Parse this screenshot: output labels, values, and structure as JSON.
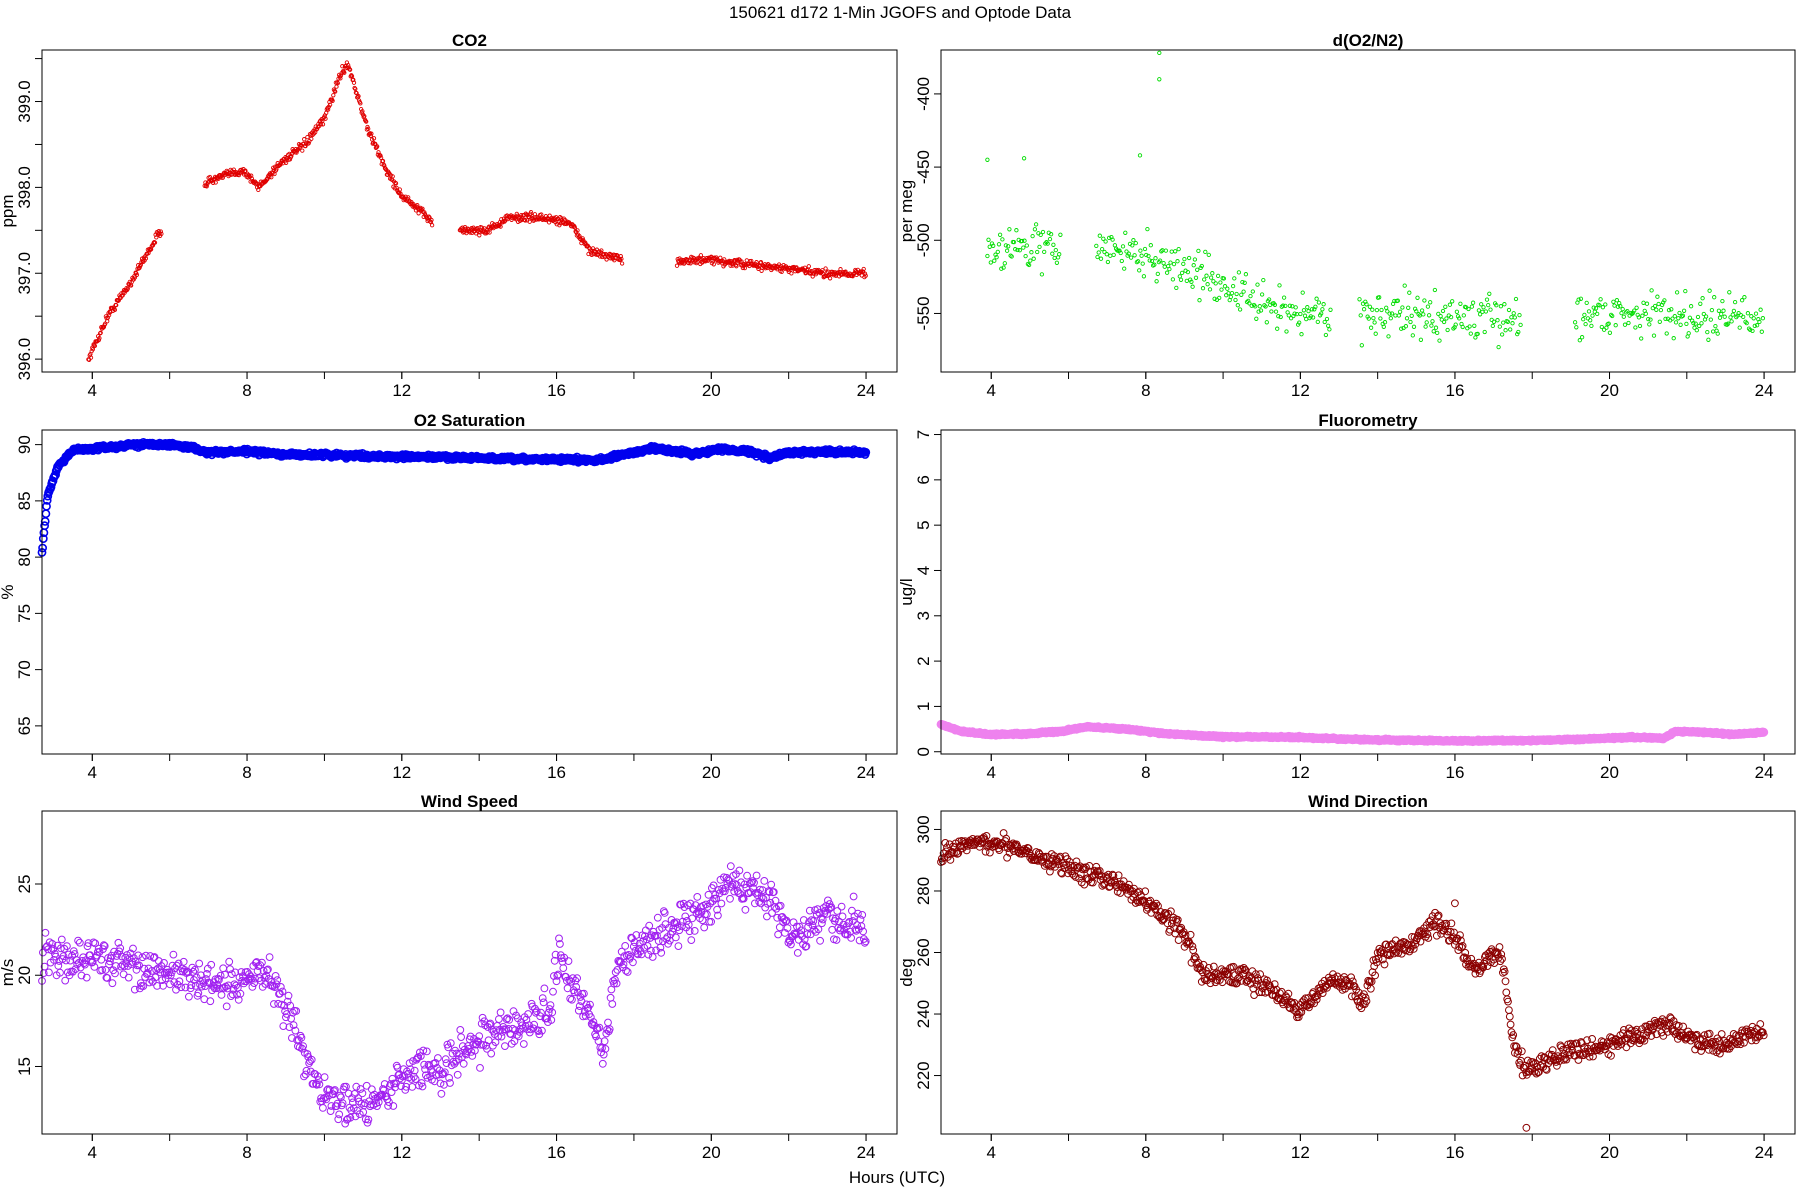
{
  "figure": {
    "title": "150621   d172   1-Min  JGOFS and Optode Data",
    "xlabel": "Hours (UTC)"
  },
  "chart_data": [
    {
      "type": "scatter",
      "id": "co2",
      "title": "CO2",
      "xlabel": "",
      "ylabel": "ppm",
      "xlim": [
        2.7,
        24.8
      ],
      "ylim": [
        395.85,
        399.6
      ],
      "xticks": [
        "4",
        "8",
        "12",
        "16",
        "20",
        "24"
      ],
      "yticks": [
        "396.0",
        "397.0",
        "398.0",
        "399.0"
      ],
      "color": "#e00000",
      "marker_size": "small",
      "gaps": [
        [
          5.8,
          6.9
        ],
        [
          12.8,
          13.5
        ],
        [
          17.7,
          19.1
        ]
      ],
      "anchors": [
        [
          3.9,
          396.0
        ],
        [
          4.4,
          396.5
        ],
        [
          5.0,
          396.9
        ],
        [
          5.7,
          397.45
        ],
        [
          6.9,
          398.05
        ],
        [
          7.5,
          398.15
        ],
        [
          7.9,
          398.2
        ],
        [
          8.3,
          398.0
        ],
        [
          8.9,
          398.3
        ],
        [
          9.5,
          398.5
        ],
        [
          10.0,
          398.8
        ],
        [
          10.4,
          399.3
        ],
        [
          10.6,
          399.45
        ],
        [
          11.1,
          398.7
        ],
        [
          11.6,
          398.2
        ],
        [
          12.0,
          397.9
        ],
        [
          12.8,
          397.6
        ],
        [
          13.5,
          397.5
        ],
        [
          14.2,
          397.5
        ],
        [
          14.8,
          397.65
        ],
        [
          15.5,
          397.65
        ],
        [
          16.3,
          397.6
        ],
        [
          16.9,
          397.25
        ],
        [
          17.7,
          397.15
        ],
        [
          19.1,
          397.15
        ],
        [
          20.0,
          397.15
        ],
        [
          21.0,
          397.1
        ],
        [
          22.0,
          397.05
        ],
        [
          22.8,
          397.0
        ],
        [
          23.7,
          397.0
        ],
        [
          24.0,
          397.0
        ]
      ],
      "noise": 0.04,
      "step": 0.0167
    },
    {
      "type": "scatter",
      "id": "do2n2",
      "title": "d(O2/N2)",
      "xlabel": "",
      "ylabel": "per meg",
      "xlim": [
        2.7,
        24.8
      ],
      "ylim": [
        -590,
        -370
      ],
      "xticks": [
        "4",
        "8",
        "12",
        "16",
        "20",
        "24"
      ],
      "yticks": [
        "-400",
        "-450",
        "-500",
        "-550"
      ],
      "color": "#00dd00",
      "marker_size": "small",
      "gaps": [
        [
          5.8,
          6.7
        ],
        [
          12.8,
          13.5
        ],
        [
          17.7,
          19.1
        ]
      ],
      "anchors": [
        [
          3.9,
          -505
        ],
        [
          5.0,
          -505
        ],
        [
          5.8,
          -505
        ],
        [
          6.7,
          -505
        ],
        [
          8.0,
          -510
        ],
        [
          9.0,
          -520
        ],
        [
          10.0,
          -530
        ],
        [
          11.0,
          -545
        ],
        [
          12.0,
          -550
        ],
        [
          12.8,
          -550
        ],
        [
          13.5,
          -550
        ],
        [
          15.0,
          -552
        ],
        [
          16.5,
          -553
        ],
        [
          17.7,
          -555
        ],
        [
          19.1,
          -550
        ],
        [
          21.0,
          -550
        ],
        [
          23.0,
          -552
        ],
        [
          24.0,
          -555
        ]
      ],
      "noise": 12,
      "step": 0.03,
      "outliers": [
        [
          8.35,
          -372
        ],
        [
          8.35,
          -390
        ],
        [
          7.85,
          -442
        ],
        [
          3.9,
          -445
        ],
        [
          4.85,
          -444
        ]
      ]
    },
    {
      "type": "scatter",
      "id": "o2sat",
      "title": "O2 Saturation",
      "xlabel": "",
      "ylabel": "%",
      "xlim": [
        2.7,
        24.8
      ],
      "ylim": [
        62.5,
        91.3
      ],
      "xticks": [
        "4",
        "8",
        "12",
        "16",
        "20",
        "24"
      ],
      "yticks": [
        "65",
        "70",
        "75",
        "80",
        "85",
        "90"
      ],
      "color": "#0000ee",
      "marker_size": "large",
      "gaps": [],
      "anchors": [
        [
          2.7,
          80.5
        ],
        [
          2.85,
          85.5
        ],
        [
          3.1,
          88.0
        ],
        [
          3.5,
          89.5
        ],
        [
          4.5,
          89.8
        ],
        [
          5.5,
          90.1
        ],
        [
          6.5,
          89.8
        ],
        [
          7.0,
          89.3
        ],
        [
          8.0,
          89.4
        ],
        [
          9.0,
          89.1
        ],
        [
          10.0,
          89.1
        ],
        [
          11.0,
          89.0
        ],
        [
          12.0,
          88.9
        ],
        [
          13.0,
          88.9
        ],
        [
          14.0,
          88.8
        ],
        [
          15.0,
          88.7
        ],
        [
          16.0,
          88.7
        ],
        [
          17.0,
          88.6
        ],
        [
          17.6,
          89.0
        ],
        [
          18.5,
          89.7
        ],
        [
          19.5,
          89.2
        ],
        [
          20.3,
          89.6
        ],
        [
          21.0,
          89.4
        ],
        [
          21.5,
          88.8
        ],
        [
          22.0,
          89.3
        ],
        [
          23.0,
          89.4
        ],
        [
          24.0,
          89.3
        ]
      ],
      "noise": 0.15,
      "step": 0.0167
    },
    {
      "type": "scatter",
      "id": "fluor",
      "title": "Fluorometry",
      "xlabel": "",
      "ylabel": "ug/l",
      "xlim": [
        2.7,
        24.8
      ],
      "ylim": [
        -0.05,
        7.1
      ],
      "xticks": [
        "4",
        "8",
        "12",
        "16",
        "20",
        "24"
      ],
      "yticks": [
        "0",
        "1",
        "2",
        "3",
        "4",
        "5",
        "6",
        "7"
      ],
      "color": "#ee82ee",
      "marker_size": "large",
      "gaps": [],
      "anchors": [
        [
          2.7,
          0.6
        ],
        [
          3.2,
          0.45
        ],
        [
          4.0,
          0.38
        ],
        [
          5.0,
          0.4
        ],
        [
          5.8,
          0.45
        ],
        [
          6.5,
          0.55
        ],
        [
          7.5,
          0.5
        ],
        [
          8.5,
          0.4
        ],
        [
          10.0,
          0.33
        ],
        [
          12.0,
          0.32
        ],
        [
          13.0,
          0.28
        ],
        [
          14.0,
          0.26
        ],
        [
          16.0,
          0.24
        ],
        [
          18.0,
          0.25
        ],
        [
          19.5,
          0.28
        ],
        [
          20.5,
          0.32
        ],
        [
          21.4,
          0.3
        ],
        [
          21.7,
          0.45
        ],
        [
          22.5,
          0.43
        ],
        [
          23.2,
          0.38
        ],
        [
          24.0,
          0.43
        ]
      ],
      "noise": 0.015,
      "step": 0.0167
    },
    {
      "type": "scatter",
      "id": "windspd",
      "title": "Wind Speed",
      "xlabel": "",
      "ylabel": "m/s",
      "xlim": [
        2.7,
        24.8
      ],
      "ylim": [
        11.3,
        29.0
      ],
      "xticks": [
        "4",
        "8",
        "12",
        "16",
        "20",
        "24"
      ],
      "yticks": [
        "15",
        "20",
        "25"
      ],
      "color": "#a020f0",
      "marker_size": "open",
      "gaps": [],
      "anchors": [
        [
          2.7,
          21.0
        ],
        [
          4.0,
          21.0
        ],
        [
          5.5,
          20.3
        ],
        [
          6.5,
          19.8
        ],
        [
          7.5,
          19.2
        ],
        [
          8.5,
          20.2
        ],
        [
          9.0,
          18.5
        ],
        [
          9.5,
          15.5
        ],
        [
          10.0,
          13.5
        ],
        [
          10.5,
          13.0
        ],
        [
          11.2,
          12.7
        ],
        [
          11.8,
          14.0
        ],
        [
          12.4,
          15.0
        ],
        [
          13.0,
          14.5
        ],
        [
          13.5,
          16.0
        ],
        [
          14.0,
          16.5
        ],
        [
          15.0,
          17.2
        ],
        [
          15.8,
          17.8
        ],
        [
          16.1,
          21.5
        ],
        [
          16.4,
          19.0
        ],
        [
          16.9,
          18.0
        ],
        [
          17.2,
          15.5
        ],
        [
          17.5,
          20.0
        ],
        [
          18.0,
          21.5
        ],
        [
          19.0,
          22.5
        ],
        [
          20.0,
          24.0
        ],
        [
          20.5,
          25.0
        ],
        [
          21.5,
          24.5
        ],
        [
          22.0,
          22.0
        ],
        [
          23.0,
          23.0
        ],
        [
          24.0,
          22.5
        ]
      ],
      "noise": 0.9,
      "step": 0.0222
    },
    {
      "type": "scatter",
      "id": "winddir",
      "title": "Wind Direction",
      "xlabel": "",
      "ylabel": "deg",
      "xlim": [
        2.7,
        24.8
      ],
      "ylim": [
        201,
        306
      ],
      "xticks": [
        "4",
        "8",
        "12",
        "16",
        "20",
        "24"
      ],
      "yticks": [
        "220",
        "240",
        "260",
        "280",
        "300"
      ],
      "color": "#8b0000",
      "marker_size": "open",
      "gaps": [],
      "anchors": [
        [
          2.7,
          291
        ],
        [
          3.5,
          296
        ],
        [
          4.5,
          295
        ],
        [
          5.5,
          290
        ],
        [
          6.5,
          286
        ],
        [
          7.5,
          281
        ],
        [
          8.5,
          272
        ],
        [
          9.0,
          266
        ],
        [
          9.5,
          252
        ],
        [
          10.5,
          253
        ],
        [
          11.5,
          246
        ],
        [
          12.0,
          241
        ],
        [
          12.8,
          251
        ],
        [
          13.3,
          250
        ],
        [
          13.6,
          242
        ],
        [
          14.0,
          259
        ],
        [
          14.8,
          262
        ],
        [
          15.5,
          270
        ],
        [
          16.1,
          263
        ],
        [
          16.4,
          254
        ],
        [
          16.8,
          258
        ],
        [
          17.2,
          260
        ],
        [
          17.5,
          232
        ],
        [
          17.8,
          222
        ],
        [
          18.3,
          224
        ],
        [
          19.0,
          228
        ],
        [
          20.0,
          230
        ],
        [
          21.0,
          235
        ],
        [
          21.6,
          237
        ],
        [
          22.0,
          232
        ],
        [
          23.0,
          230
        ],
        [
          24.0,
          235
        ]
      ],
      "noise": 2.6,
      "step": 0.0222,
      "outliers": [
        [
          17.85,
          203
        ],
        [
          16.0,
          276
        ]
      ]
    }
  ]
}
